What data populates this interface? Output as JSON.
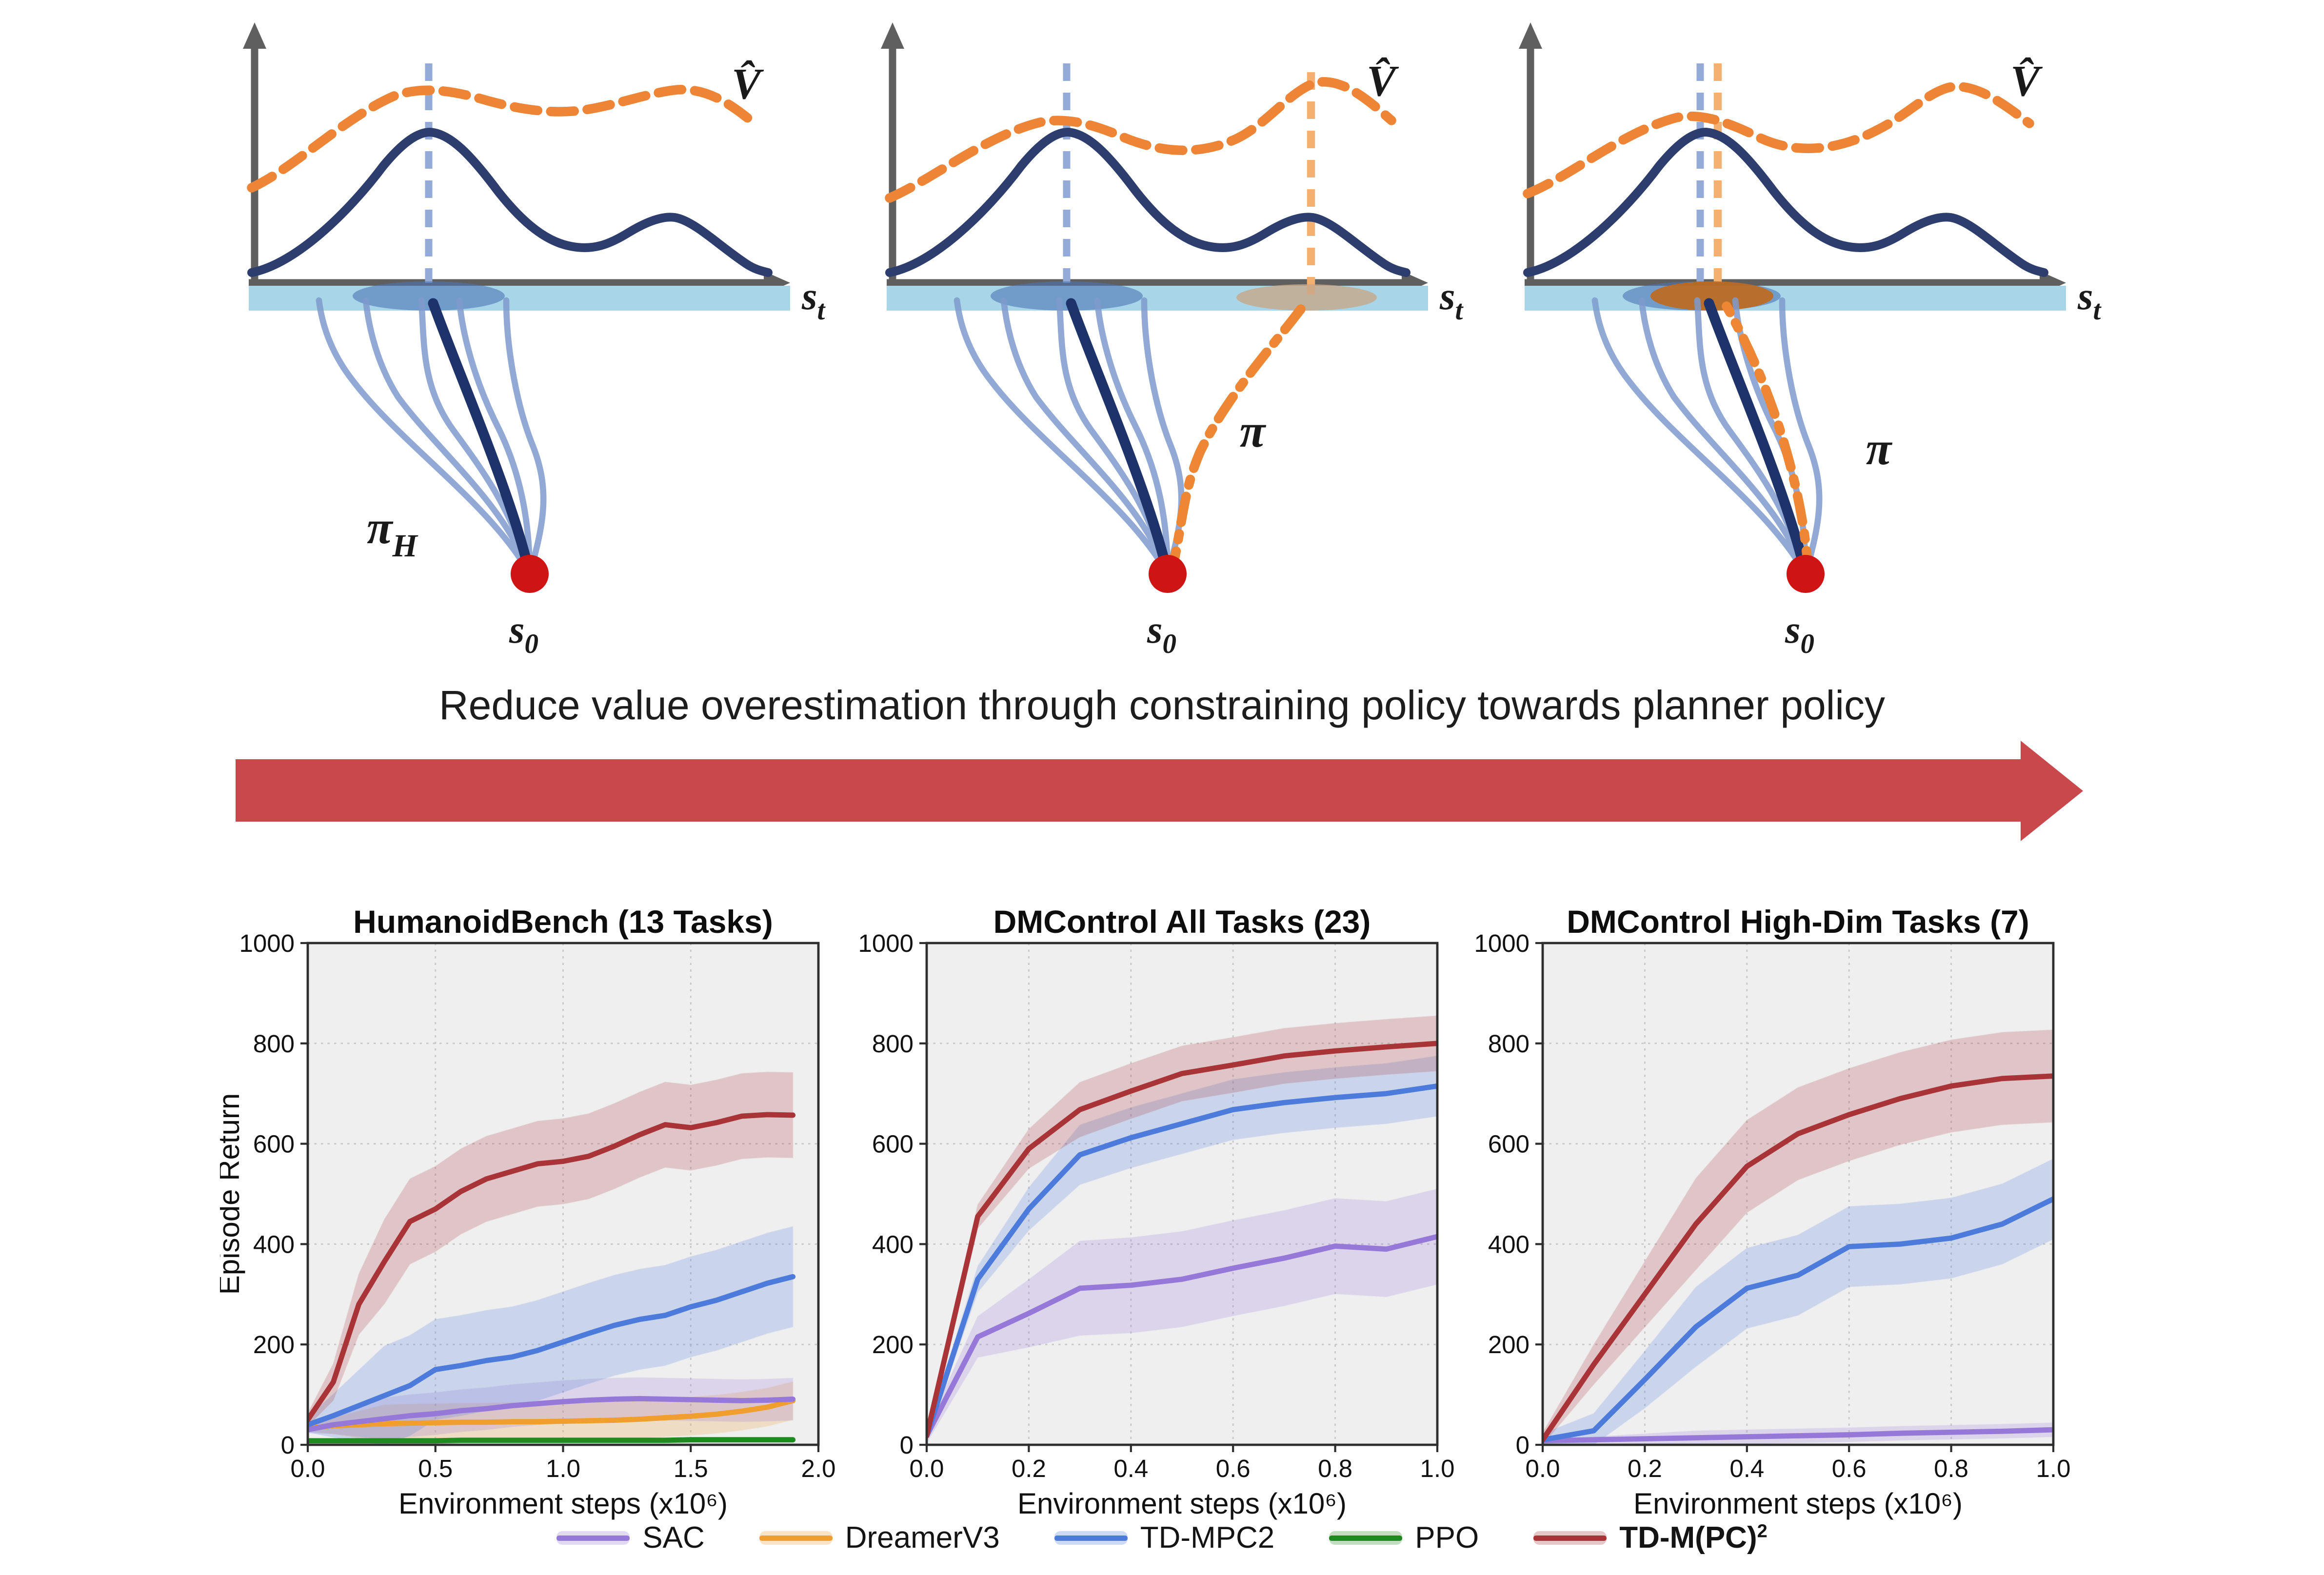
{
  "caption": "Reduce value overestimation through constraining policy towards planner policy",
  "arrow_color": "#c8484c",
  "diagram_labels": {
    "value_fn": "V̂",
    "state": "s",
    "state_sub": "t",
    "start": "s",
    "start_sub": "0",
    "planner_pi": "π",
    "planner_pi_sub": "H",
    "policy_pi": "π"
  },
  "diagram_colors": {
    "axis": "#5f5f5f",
    "true_value_curve": "#2c3d6e",
    "value_estimate_curve": "#ee8536",
    "planner_peak_line": "#93abd6",
    "value_peak_line": "#f3b070",
    "state_strip": "#a9d5e9",
    "planner_ellipse": "#4d74b4",
    "overestimated_ellipse": "#c4a888",
    "aligned_ellipse": "#c06a1d",
    "trajectory_light": "#7e9bcd",
    "trajectory_dark": "#1d3369",
    "policy_trajectory": "#ed8733",
    "start_dot": "#cf1414"
  },
  "chart_style": {
    "plot_bg": "#efeff0",
    "grid": "#c9c9c9",
    "spine": "#2e2e2e",
    "tick_label": "#111111",
    "title_color": "#0d0d0d"
  },
  "chart_data": [
    {
      "type": "line",
      "title": "HumanoidBench (13 Tasks)",
      "xlabel": "Environment steps (x10⁶)",
      "ylabel": "Episode Return",
      "xlim": [
        0,
        2.0
      ],
      "ylim": [
        0,
        1000
      ],
      "xticks": [
        0.0,
        0.5,
        1.0,
        1.5,
        2.0
      ],
      "yticks": [
        0,
        200,
        400,
        600,
        800,
        1000
      ],
      "grid": "dotted",
      "x": [
        0,
        0.1,
        0.2,
        0.3,
        0.4,
        0.5,
        0.6,
        0.7,
        0.8,
        0.9,
        1.0,
        1.1,
        1.2,
        1.3,
        1.4,
        1.5,
        1.6,
        1.7,
        1.8,
        1.9
      ],
      "series": [
        {
          "name": "PPO",
          "color": "#1f8a1f",
          "band": 5,
          "values": [
            8,
            8,
            8,
            8,
            8,
            8,
            9,
            9,
            9,
            9,
            9,
            9,
            9,
            9,
            9,
            10,
            10,
            10,
            10,
            10
          ]
        },
        {
          "name": "DreamerV3",
          "color": "#f09e2e",
          "band": 38,
          "values": [
            33,
            38,
            40,
            42,
            43,
            44,
            45,
            45,
            46,
            46,
            47,
            48,
            49,
            51,
            54,
            57,
            61,
            67,
            75,
            88
          ]
        },
        {
          "name": "SAC",
          "color": "#9678d8",
          "band": 42,
          "values": [
            30,
            40,
            46,
            52,
            58,
            62,
            68,
            72,
            78,
            82,
            86,
            89,
            91,
            92,
            91,
            90,
            89,
            88,
            89,
            91
          ]
        },
        {
          "name": "TD-MPC2",
          "color": "#4c7bdc",
          "band": 100,
          "values": [
            40,
            58,
            78,
            98,
            118,
            150,
            158,
            168,
            175,
            188,
            205,
            222,
            238,
            250,
            258,
            275,
            288,
            305,
            322,
            335
          ]
        },
        {
          "name": "TD-M(PC)2",
          "color": "#a93438",
          "band": 85,
          "values": [
            50,
            125,
            280,
            365,
            445,
            470,
            505,
            530,
            545,
            560,
            565,
            575,
            595,
            618,
            638,
            632,
            642,
            655,
            658,
            657
          ]
        }
      ]
    },
    {
      "type": "line",
      "title": "DMControl All Tasks (23)",
      "xlabel": "Environment steps (x10⁶)",
      "ylabel": "",
      "xlim": [
        0,
        1.0
      ],
      "ylim": [
        0,
        1000
      ],
      "xticks": [
        0.0,
        0.2,
        0.4,
        0.6,
        0.8,
        1.0
      ],
      "yticks": [
        0,
        200,
        400,
        600,
        800,
        1000
      ],
      "grid": "dotted",
      "x": [
        0,
        0.1,
        0.2,
        0.3,
        0.4,
        0.5,
        0.6,
        0.7,
        0.8,
        0.9,
        1.0
      ],
      "series": [
        {
          "name": "SAC",
          "color": "#9678d8",
          "band": 95,
          "values": [
            18,
            215,
            262,
            312,
            318,
            330,
            352,
            372,
            396,
            390,
            415
          ]
        },
        {
          "name": "TD-MPC2",
          "color": "#4c7bdc",
          "band": 60,
          "values": [
            18,
            330,
            470,
            578,
            612,
            640,
            668,
            682,
            692,
            700,
            715
          ]
        },
        {
          "name": "TD-M(PC)2",
          "color": "#a93438",
          "band": 55,
          "values": [
            18,
            455,
            590,
            668,
            705,
            740,
            757,
            775,
            785,
            793,
            800
          ]
        }
      ]
    },
    {
      "type": "line",
      "title": "DMControl High-Dim Tasks (7)",
      "xlabel": "Environment steps (x10⁶)",
      "ylabel": "",
      "xlim": [
        0,
        1.0
      ],
      "ylim": [
        0,
        1000
      ],
      "xticks": [
        0.0,
        0.2,
        0.4,
        0.6,
        0.8,
        1.0
      ],
      "yticks": [
        0,
        200,
        400,
        600,
        800,
        1000
      ],
      "grid": "dotted",
      "x": [
        0,
        0.1,
        0.2,
        0.3,
        0.4,
        0.5,
        0.6,
        0.7,
        0.8,
        0.9,
        1.0
      ],
      "series": [
        {
          "name": "SAC",
          "color": "#9678d8",
          "band": 14,
          "values": [
            8,
            10,
            12,
            14,
            16,
            18,
            20,
            23,
            25,
            27,
            30
          ]
        },
        {
          "name": "TD-MPC2",
          "color": "#4c7bdc",
          "band": 80,
          "values": [
            10,
            28,
            130,
            235,
            312,
            338,
            395,
            400,
            412,
            440,
            490
          ]
        },
        {
          "name": "TD-M(PC)2",
          "color": "#a93438",
          "band": 92,
          "values": [
            10,
            160,
            300,
            440,
            555,
            620,
            658,
            690,
            715,
            730,
            735
          ]
        }
      ]
    }
  ],
  "legend": {
    "position": "bottom-center",
    "entries": [
      {
        "label": "SAC",
        "color": "#9678d8",
        "bold": false,
        "sup": ""
      },
      {
        "label": "DreamerV3",
        "color": "#f09e2e",
        "bold": false,
        "sup": ""
      },
      {
        "label": "TD-MPC2",
        "color": "#4c7bdc",
        "bold": false,
        "sup": ""
      },
      {
        "label": "PPO",
        "color": "#1f8a1f",
        "bold": false,
        "sup": ""
      },
      {
        "label": "TD-M(PC)",
        "color": "#a93438",
        "bold": true,
        "sup": "2"
      }
    ]
  }
}
